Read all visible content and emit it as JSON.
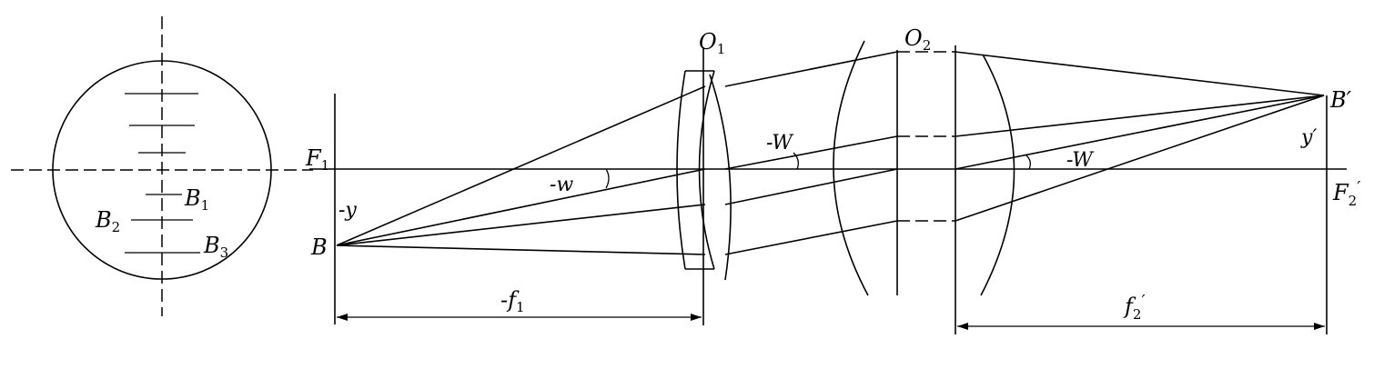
{
  "labels": {
    "B1_main": "B",
    "B1_sub": "1",
    "B2_main": "B",
    "B2_sub": "2",
    "B3_main": "B",
    "B3_sub": "3",
    "O1_main": "O",
    "O1_sub": "1",
    "O2_main": "O",
    "O2_sub": "2",
    "F1_main": "F",
    "F1_sub": "1",
    "F2p_main": "F",
    "F2p_sub": "2",
    "F2p_prime": "′",
    "B": "B",
    "Bprime": "B′",
    "neg_y": "-y",
    "y_prime": "y′",
    "neg_w": "-w",
    "neg_W_1": "-W",
    "neg_W_2": "-W",
    "neg_f1_main": "-f",
    "neg_f1_sub": "1",
    "f2p_main": "f",
    "f2p_sub": "2",
    "f2p_prime": "′"
  }
}
